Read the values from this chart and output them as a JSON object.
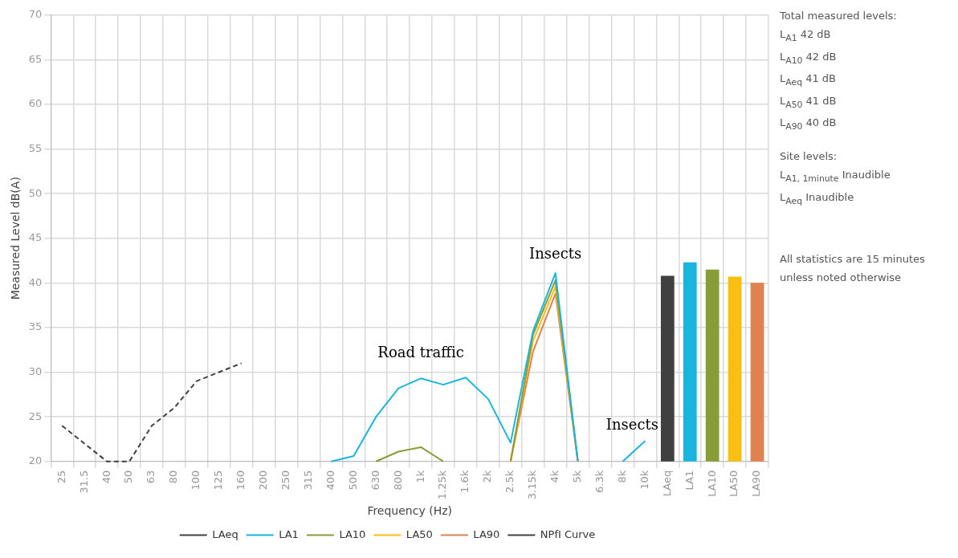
{
  "chart_data": {
    "type": "line",
    "xlabel": "Frequency (Hz)",
    "ylabel": "Measured Level dB(A)",
    "categories": [
      "25",
      "31.5",
      "40",
      "50",
      "63",
      "80",
      "100",
      "125",
      "160",
      "200",
      "250",
      "315",
      "400",
      "500",
      "630",
      "800",
      "1k",
      "1.25k",
      "1.6k",
      "2k",
      "2.5k",
      "3.15k",
      "4k",
      "5k",
      "6.3k",
      "8k",
      "10k",
      "LAeq",
      "LA1",
      "LA10",
      "LA50",
      "LA90"
    ],
    "ylim": [
      20,
      70
    ],
    "yticks": [
      20,
      25,
      30,
      35,
      40,
      45,
      50,
      55,
      60,
      65,
      70
    ],
    "grid": true,
    "legend": "bottom",
    "marker": "none",
    "series": [
      {
        "name": "LAeq",
        "color": "#404040",
        "values": [
          null,
          null,
          null,
          null,
          null,
          null,
          null,
          null,
          null,
          null,
          null,
          null,
          null,
          null,
          null,
          null,
          null,
          null,
          null,
          null,
          null,
          null,
          null,
          null,
          null,
          null,
          null,
          null,
          null,
          null,
          null,
          null
        ]
      },
      {
        "name": "LA1",
        "color": "#1ab4e0",
        "values": [
          null,
          null,
          null,
          null,
          null,
          null,
          null,
          null,
          null,
          null,
          null,
          null,
          20,
          20.6,
          25,
          28.2,
          29.3,
          28.6,
          29.4,
          27,
          22.1,
          34.6,
          41.1,
          20,
          null,
          20,
          22.3,
          null,
          null,
          null,
          null,
          null
        ]
      },
      {
        "name": "LA10",
        "color": "#869d38",
        "values": [
          null,
          null,
          null,
          null,
          null,
          null,
          null,
          null,
          null,
          null,
          null,
          null,
          null,
          null,
          20,
          21.1,
          21.6,
          20,
          null,
          null,
          20,
          34.2,
          40.3,
          20,
          null,
          null,
          null,
          null,
          null,
          null,
          null,
          null
        ]
      },
      {
        "name": "LA50",
        "color": "#fbbf14",
        "values": [
          null,
          null,
          null,
          null,
          null,
          null,
          null,
          null,
          null,
          null,
          null,
          null,
          null,
          null,
          null,
          null,
          null,
          null,
          null,
          null,
          20,
          33.5,
          39.6,
          20,
          null,
          null,
          null,
          null,
          null,
          null,
          null,
          null
        ]
      },
      {
        "name": "LA90",
        "color": "#e0824e",
        "values": [
          null,
          null,
          null,
          null,
          null,
          null,
          null,
          null,
          null,
          null,
          null,
          null,
          null,
          null,
          null,
          null,
          null,
          null,
          null,
          null,
          20,
          32.3,
          38.8,
          20,
          null,
          null,
          null,
          null,
          null,
          null,
          null,
          null
        ]
      },
      {
        "name": "NPfI Curve",
        "color": "#404040",
        "line_style": "dashed",
        "values": [
          24,
          22,
          20,
          20,
          24,
          26,
          29,
          30,
          31,
          null,
          null,
          null,
          null,
          null,
          null,
          null,
          null,
          null,
          null,
          null,
          null,
          null,
          null,
          null,
          null,
          null,
          null,
          null,
          null,
          null,
          null,
          null
        ]
      },
      {
        "type": "bar",
        "colors": [
          null,
          null,
          null,
          null,
          null,
          null,
          null,
          null,
          null,
          null,
          null,
          null,
          null,
          null,
          null,
          null,
          null,
          null,
          null,
          null,
          null,
          null,
          null,
          null,
          null,
          null,
          null,
          "#404040",
          "#1ab4e0",
          "#869d38",
          "#fbbf14",
          "#e0824e"
        ],
        "values": [
          null,
          null,
          null,
          null,
          null,
          null,
          null,
          null,
          null,
          null,
          null,
          null,
          null,
          null,
          null,
          null,
          null,
          null,
          null,
          null,
          null,
          null,
          null,
          null,
          null,
          null,
          null,
          40.8,
          42.3,
          41.5,
          40.7,
          40.0
        ]
      }
    ],
    "annotations": [
      {
        "text": "Road traffic",
        "x": "1k",
        "y": 29.3
      },
      {
        "text": "Insects",
        "x": "4k",
        "y": 41.1
      },
      {
        "text": "Insects",
        "x": "10k",
        "y": 22.3
      },
      "Total measured levels:",
      "L$_{A1}$ 42 dB",
      "L$_{A10}$ 42 dB",
      "L$_{Aeq}$ 41 dB",
      "L$_{A50}$ 41 dB",
      "L$_{A90}$ 40 dB",
      "Site levels:",
      "L$_{A1, 1minute}$ Inaudible",
      "L$_{Aeq}$ Inaudible",
      "All statistics are 15 minutes unless noted otherwise"
    ]
  }
}
